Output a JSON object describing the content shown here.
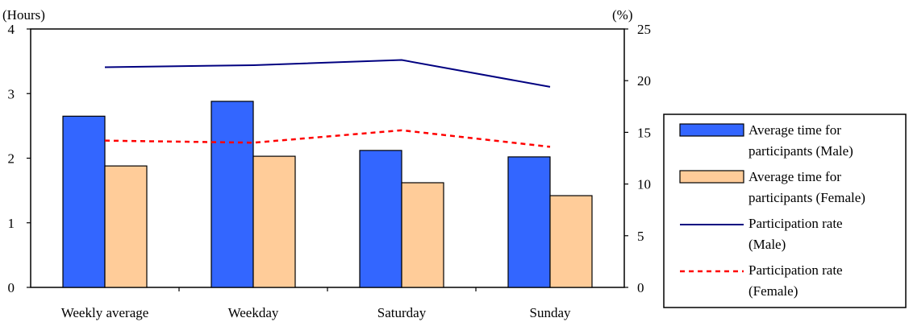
{
  "chart_data": {
    "type": "bar",
    "categories": [
      "Weekly average",
      "Weekday",
      "Saturday",
      "Sunday"
    ],
    "left_axis": {
      "unit_label": "(Hours)",
      "ylim": [
        0,
        4
      ],
      "ticks": [
        "0",
        "1",
        "2",
        "3",
        "4"
      ]
    },
    "right_axis": {
      "unit_label": "(%)",
      "ylim": [
        0,
        25
      ],
      "ticks": [
        "0",
        "5",
        "10",
        "15",
        "20",
        "25"
      ]
    },
    "series": [
      {
        "name": "Average time for participants  (Male)",
        "kind": "bar",
        "axis": "left",
        "color": "#3366ff",
        "values": [
          2.65,
          2.88,
          2.12,
          2.02
        ]
      },
      {
        "name": "Average time for participants  (Female)",
        "kind": "bar",
        "axis": "left",
        "color": "#ffcc99",
        "values": [
          1.88,
          2.03,
          1.62,
          1.42
        ]
      },
      {
        "name": "Participation rate (Male)",
        "kind": "line",
        "axis": "right",
        "color": "#000080",
        "style": "solid",
        "values": [
          21.3,
          21.5,
          22.0,
          19.4
        ]
      },
      {
        "name": "Participation rate (Female)",
        "kind": "line",
        "axis": "right",
        "color": "#ff0000",
        "style": "dashed",
        "values": [
          14.2,
          14.0,
          15.2,
          13.6
        ]
      }
    ],
    "legend": {
      "placement": "right",
      "entries": [
        {
          "line1": "Average time for",
          "line2": "participants  (Male)"
        },
        {
          "line1": "Average time for",
          "line2": "participants  (Female)"
        },
        {
          "line1": "Participation rate",
          "line2": "(Male)"
        },
        {
          "line1": "Participation rate",
          "line2": "(Female)"
        }
      ]
    },
    "grid": false
  }
}
